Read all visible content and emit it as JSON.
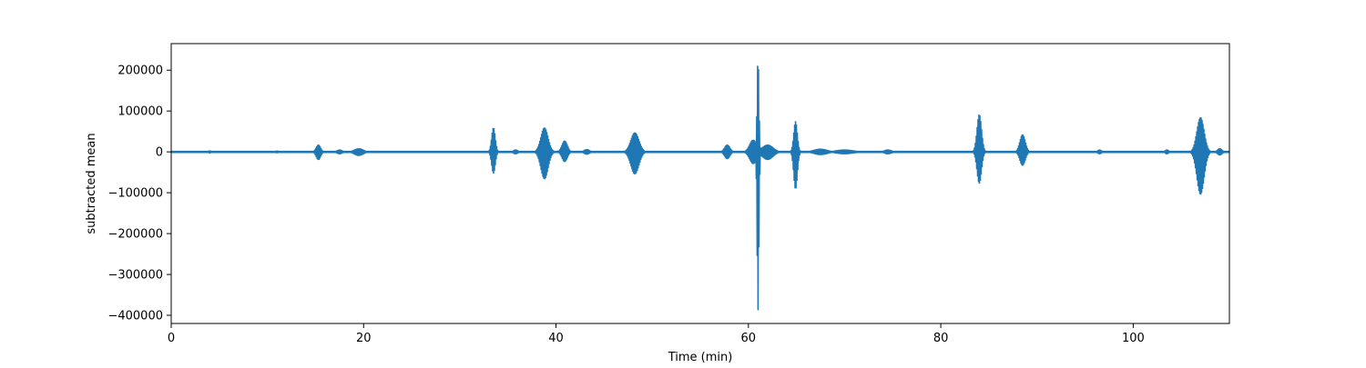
{
  "chart_data": {
    "type": "line",
    "title": "",
    "xlabel": "Time (min)",
    "ylabel": "subtracted mean",
    "xlim": [
      0,
      110
    ],
    "ylim": [
      -420000,
      265000
    ],
    "x_ticks": [
      0,
      20,
      40,
      60,
      80,
      100
    ],
    "y_ticks": [
      -400000,
      -300000,
      -200000,
      -100000,
      0,
      100000,
      200000
    ],
    "x_tick_labels": [
      "0",
      "20",
      "40",
      "60",
      "80",
      "100"
    ],
    "y_tick_labels": [
      "−400000",
      "−300000",
      "−200000",
      "−100000",
      "0",
      "100000",
      "200000"
    ],
    "grid": false,
    "legend": null,
    "series": [
      {
        "color": "#1f77b4",
        "baseline_amplitude": 2500,
        "bursts": [
          {
            "center": 4.0,
            "width": 0.2,
            "max": 4000,
            "min": -4000
          },
          {
            "center": 11.0,
            "width": 0.3,
            "max": 3500,
            "min": -3500
          },
          {
            "center": 15.3,
            "width": 0.5,
            "max": 18000,
            "min": -20000
          },
          {
            "center": 17.5,
            "width": 0.6,
            "max": 6000,
            "min": -6000
          },
          {
            "center": 19.5,
            "width": 1.0,
            "max": 9000,
            "min": -10000
          },
          {
            "center": 33.5,
            "width": 0.4,
            "max": 60000,
            "min": -53000
          },
          {
            "center": 35.8,
            "width": 0.5,
            "max": 6000,
            "min": -6000
          },
          {
            "center": 38.8,
            "width": 0.8,
            "max": 60000,
            "min": -67000
          },
          {
            "center": 40.9,
            "width": 0.6,
            "max": 28000,
            "min": -25000
          },
          {
            "center": 43.2,
            "width": 0.6,
            "max": 7000,
            "min": -7000
          },
          {
            "center": 48.2,
            "width": 0.9,
            "max": 48000,
            "min": -55000
          },
          {
            "center": 57.8,
            "width": 0.6,
            "max": 18000,
            "min": -18000
          },
          {
            "center": 60.5,
            "width": 0.8,
            "max": 30000,
            "min": -30000
          },
          {
            "center": 61.0,
            "width": 0.2,
            "max": 232000,
            "min": -388000
          },
          {
            "center": 62.0,
            "width": 1.2,
            "max": 18000,
            "min": -20000
          },
          {
            "center": 64.9,
            "width": 0.4,
            "max": 75000,
            "min": -92000
          },
          {
            "center": 67.5,
            "width": 1.5,
            "max": 8000,
            "min": -8000
          },
          {
            "center": 70.0,
            "width": 2.0,
            "max": 6000,
            "min": -6000
          },
          {
            "center": 74.5,
            "width": 0.8,
            "max": 6000,
            "min": -6000
          },
          {
            "center": 84.0,
            "width": 0.5,
            "max": 92000,
            "min": -78000
          },
          {
            "center": 88.5,
            "width": 0.6,
            "max": 43000,
            "min": -34000
          },
          {
            "center": 96.5,
            "width": 0.4,
            "max": 6000,
            "min": -6000
          },
          {
            "center": 103.5,
            "width": 0.4,
            "max": 6000,
            "min": -6000
          },
          {
            "center": 107.0,
            "width": 0.8,
            "max": 85000,
            "min": -105000
          },
          {
            "center": 109.0,
            "width": 0.5,
            "max": 9000,
            "min": -9000
          }
        ]
      }
    ]
  }
}
